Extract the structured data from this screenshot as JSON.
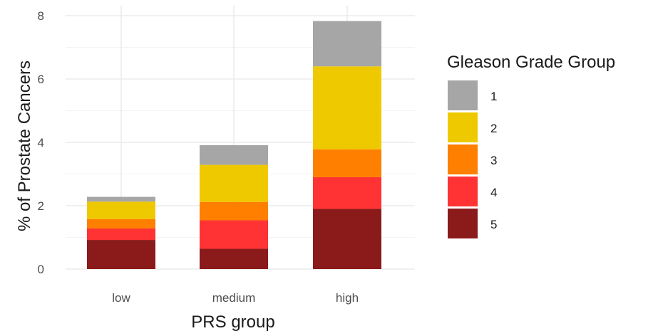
{
  "chart_data": {
    "type": "bar",
    "stacked": true,
    "categories": [
      "low",
      "medium",
      "high"
    ],
    "xlabel": "PRS group",
    "ylabel": "% of Prostate Cancers",
    "ylim": [
      0,
      8
    ],
    "yticks": [
      0,
      2,
      4,
      6,
      8
    ],
    "grid": true,
    "legend": {
      "title": "Gleason Grade Group",
      "placement": "right"
    },
    "series": [
      {
        "name": "5",
        "color": "#8b1a1a",
        "values": [
          0.92,
          0.64,
          1.9
        ]
      },
      {
        "name": "4",
        "color": "#ff3333",
        "values": [
          0.36,
          0.9,
          1.0
        ]
      },
      {
        "name": "3",
        "color": "#ff7f00",
        "values": [
          0.3,
          0.58,
          0.88
        ]
      },
      {
        "name": "2",
        "color": "#eec900",
        "values": [
          0.55,
          1.17,
          2.62
        ]
      },
      {
        "name": "1",
        "color": "#a6a6a6",
        "values": [
          0.15,
          0.62,
          1.43
        ]
      }
    ]
  }
}
